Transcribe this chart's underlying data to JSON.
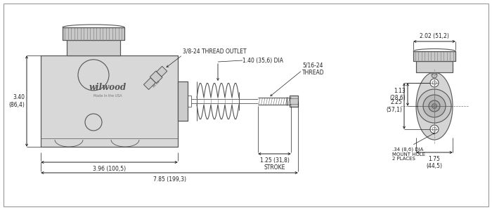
{
  "bg_color": "#ffffff",
  "line_color": "#555555",
  "dim_color": "#222222",
  "annotations": {
    "thread_outlet": "3/8-24 THREAD OUTLET",
    "dia_label": "1.40 (35,6) DIA",
    "thread_5_16": "5/16-24\nTHREAD",
    "height_label": "3.40\n(86,4)",
    "len1_label": "3.96 (100,5)",
    "len2_label": "7.85 (199,3)",
    "stroke_label": "1.25 (31,8)\nSTROKE",
    "width_top": "2.02 (51,2)",
    "dim_113": "1.13\n(28,6)",
    "dim_225": "2.25\n(57,1)",
    "mount_hole": ".34 (8,6) DIA\nMOUNT HOLE\n2 PLACES",
    "dim_175": "1.75\n(44,5)"
  }
}
